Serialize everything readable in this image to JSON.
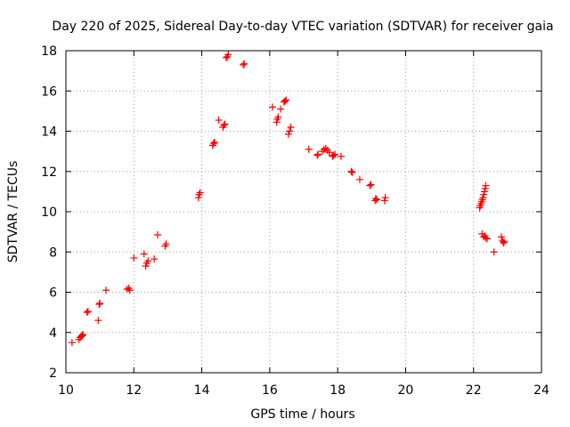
{
  "chart_data": {
    "type": "scatter",
    "title": "Day 220 of 2025, Sidereal Day-to-day VTEC variation (SDTVAR) for receiver gaia",
    "xlabel": "GPS time / hours",
    "ylabel": "SDTVAR / TECUs",
    "xlim": [
      10,
      24
    ],
    "ylim": [
      2,
      18
    ],
    "xticks": [
      10,
      12,
      14,
      16,
      18,
      20,
      22,
      24
    ],
    "yticks": [
      2,
      4,
      6,
      8,
      10,
      12,
      14,
      16,
      18
    ],
    "xtick_labels": [
      "10",
      "12",
      "14",
      "16",
      "18",
      "20",
      "22",
      "24"
    ],
    "ytick_labels": [
      "2",
      "4",
      "6",
      "8",
      "10",
      "12",
      "14",
      "16",
      "18"
    ],
    "grid": true,
    "marker": "plus",
    "color": "#ff0000",
    "series": [
      {
        "name": "gaia",
        "points": [
          [
            10.18,
            3.5
          ],
          [
            10.38,
            3.65
          ],
          [
            10.42,
            3.75
          ],
          [
            10.45,
            3.8
          ],
          [
            10.48,
            3.85
          ],
          [
            10.5,
            3.9
          ],
          [
            10.62,
            5.0
          ],
          [
            10.65,
            5.05
          ],
          [
            10.95,
            4.6
          ],
          [
            10.98,
            5.4
          ],
          [
            11.0,
            5.45
          ],
          [
            11.18,
            6.1
          ],
          [
            11.8,
            6.15
          ],
          [
            11.85,
            6.2
          ],
          [
            11.88,
            6.1
          ],
          [
            12.0,
            7.7
          ],
          [
            12.3,
            7.9
          ],
          [
            12.35,
            7.3
          ],
          [
            12.38,
            7.45
          ],
          [
            12.42,
            7.55
          ],
          [
            12.6,
            7.65
          ],
          [
            12.7,
            8.85
          ],
          [
            12.92,
            8.3
          ],
          [
            12.95,
            8.4
          ],
          [
            13.9,
            10.7
          ],
          [
            13.92,
            10.85
          ],
          [
            13.95,
            10.95
          ],
          [
            14.32,
            13.3
          ],
          [
            14.35,
            13.4
          ],
          [
            14.38,
            13.45
          ],
          [
            14.5,
            14.55
          ],
          [
            14.62,
            14.2
          ],
          [
            14.65,
            14.3
          ],
          [
            14.68,
            14.35
          ],
          [
            14.72,
            17.65
          ],
          [
            14.75,
            17.7
          ],
          [
            14.78,
            17.8
          ],
          [
            15.22,
            17.3
          ],
          [
            15.25,
            17.35
          ],
          [
            16.08,
            15.2
          ],
          [
            16.2,
            14.45
          ],
          [
            16.22,
            14.6
          ],
          [
            16.25,
            14.7
          ],
          [
            16.32,
            15.1
          ],
          [
            16.42,
            15.45
          ],
          [
            16.45,
            15.5
          ],
          [
            16.48,
            15.55
          ],
          [
            16.55,
            13.85
          ],
          [
            16.58,
            14.0
          ],
          [
            16.62,
            14.2
          ],
          [
            17.15,
            13.1
          ],
          [
            17.4,
            12.8
          ],
          [
            17.42,
            12.85
          ],
          [
            17.55,
            13.0
          ],
          [
            17.6,
            13.1
          ],
          [
            17.65,
            13.15
          ],
          [
            17.7,
            13.05
          ],
          [
            17.75,
            12.95
          ],
          [
            17.85,
            12.75
          ],
          [
            17.88,
            12.8
          ],
          [
            17.92,
            12.85
          ],
          [
            18.1,
            12.75
          ],
          [
            18.4,
            12.0
          ],
          [
            18.43,
            11.95
          ],
          [
            18.65,
            11.6
          ],
          [
            18.95,
            11.3
          ],
          [
            18.98,
            11.35
          ],
          [
            19.1,
            10.55
          ],
          [
            19.12,
            10.65
          ],
          [
            19.15,
            10.6
          ],
          [
            19.38,
            10.55
          ],
          [
            19.4,
            10.7
          ],
          [
            22.18,
            10.2
          ],
          [
            22.2,
            10.3
          ],
          [
            22.22,
            10.4
          ],
          [
            22.24,
            10.5
          ],
          [
            22.26,
            10.6
          ],
          [
            22.28,
            10.7
          ],
          [
            22.3,
            10.85
          ],
          [
            22.32,
            11.0
          ],
          [
            22.34,
            11.15
          ],
          [
            22.36,
            11.3
          ],
          [
            22.25,
            8.9
          ],
          [
            22.3,
            8.75
          ],
          [
            22.33,
            8.8
          ],
          [
            22.36,
            8.7
          ],
          [
            22.4,
            8.65
          ],
          [
            22.6,
            8.0
          ],
          [
            22.82,
            8.75
          ],
          [
            22.85,
            8.55
          ],
          [
            22.88,
            8.45
          ],
          [
            22.9,
            8.5
          ]
        ]
      }
    ]
  }
}
